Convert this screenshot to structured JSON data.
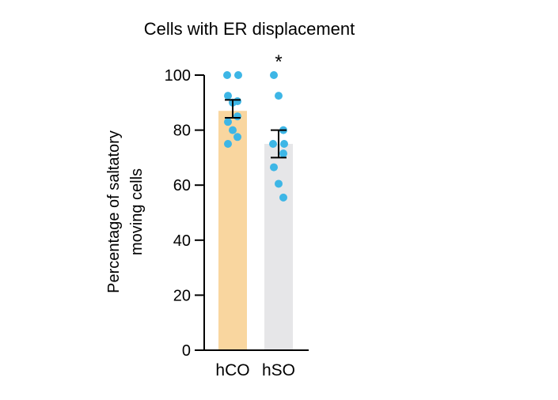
{
  "chart_data": {
    "type": "bar",
    "title": "Cells with ER displacement",
    "ylabel_lines": [
      "Percentage of saltatory",
      "moving cells"
    ],
    "categories": [
      "hCO",
      "hSO"
    ],
    "values": [
      87,
      75
    ],
    "error": [
      [
        84.5,
        91
      ],
      [
        70,
        80
      ]
    ],
    "points": [
      [
        100,
        100,
        90.5,
        92.5,
        90,
        85,
        83,
        80,
        77.5,
        75
      ],
      [
        100,
        92.5,
        80,
        75,
        75,
        71.5,
        66.5,
        60.5,
        55.5
      ]
    ],
    "bar_colors": [
      "#F9D69F",
      "#E6E6E8"
    ],
    "point_color": "#3DB6E6",
    "significance": [
      "",
      "*"
    ],
    "yticks": [
      0,
      20,
      40,
      60,
      80,
      100
    ],
    "ylim": [
      0,
      100
    ],
    "grid": false,
    "legend": "none"
  }
}
